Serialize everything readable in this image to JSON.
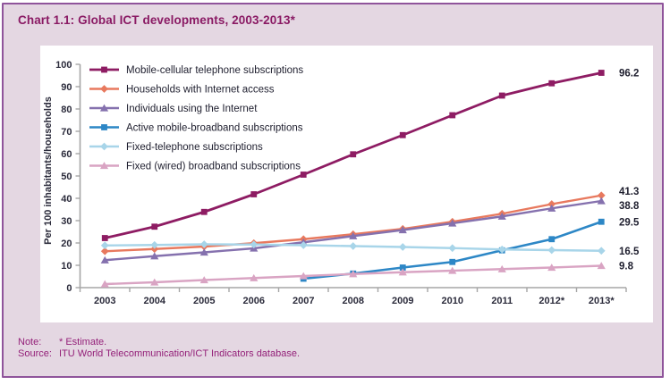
{
  "card": {
    "title": "Chart 1.1: Global ICT developments, 2003-2013*",
    "note_label": "Note:",
    "note_text": "* Estimate.",
    "source_label": "Source:",
    "source_text": "ITU World Telecommunication/ICT Indicators database."
  },
  "chart_data": {
    "type": "line",
    "title": "Chart 1.1: Global ICT developments, 2003-2013*",
    "xlabel": "",
    "ylabel": "Per 100 inhabitants/households",
    "categories": [
      "2003",
      "2004",
      "2005",
      "2006",
      "2007",
      "2008",
      "2009",
      "2010",
      "2011",
      "2012*",
      "2013*"
    ],
    "ylim": [
      0,
      100
    ],
    "yticks": [
      0,
      10,
      20,
      30,
      40,
      50,
      60,
      70,
      80,
      90,
      100
    ],
    "grid": false,
    "legend_position": "top-left-inside",
    "series": [
      {
        "name": "Mobile-cellular telephone subscriptions",
        "color": "#8E1C63",
        "marker": "square",
        "line_width": 2.8,
        "end_label": "96.2",
        "values": [
          22.2,
          27.3,
          33.9,
          41.8,
          50.6,
          59.7,
          68.3,
          77.2,
          86.0,
          91.5,
          96.2
        ]
      },
      {
        "name": "Households with Internet access",
        "color": "#E8795E",
        "marker": "diamond",
        "line_width": 2.4,
        "end_label": "41.3",
        "values": [
          16.3,
          17.3,
          18.4,
          19.9,
          21.7,
          23.9,
          26.3,
          29.5,
          33.1,
          37.4,
          41.3
        ]
      },
      {
        "name": "Individuals using the Internet",
        "color": "#8571AE",
        "marker": "triangle",
        "line_width": 2.4,
        "end_label": "38.8",
        "values": [
          12.3,
          14.1,
          15.8,
          17.6,
          20.3,
          23.1,
          25.8,
          28.8,
          31.9,
          35.5,
          38.8
        ]
      },
      {
        "name": "Active mobile-broadband subscriptions",
        "color": "#2D87C6",
        "marker": "square",
        "line_width": 2.6,
        "end_label": "29.5",
        "values": [
          null,
          null,
          null,
          null,
          4.0,
          6.3,
          9.0,
          11.5,
          16.7,
          21.7,
          29.5
        ]
      },
      {
        "name": "Fixed-telephone subscriptions",
        "color": "#A8D5E9",
        "marker": "diamond",
        "line_width": 2.4,
        "end_label": "16.5",
        "values": [
          18.9,
          19.1,
          19.4,
          19.3,
          19.0,
          18.6,
          18.2,
          17.7,
          17.1,
          16.8,
          16.5
        ]
      },
      {
        "name": "Fixed (wired) broadband subscriptions",
        "color": "#D9A4C3",
        "marker": "triangle",
        "line_width": 2.4,
        "end_label": "9.8",
        "values": [
          1.6,
          2.4,
          3.4,
          4.3,
          5.2,
          6.1,
          6.9,
          7.6,
          8.3,
          9.0,
          9.8
        ]
      }
    ],
    "colors": {
      "axis": "#A6A6A6",
      "tick_text": "#2B2B3B",
      "legend_text": "#1E1E2E",
      "end_label_text": "#1E1E2E"
    }
  }
}
